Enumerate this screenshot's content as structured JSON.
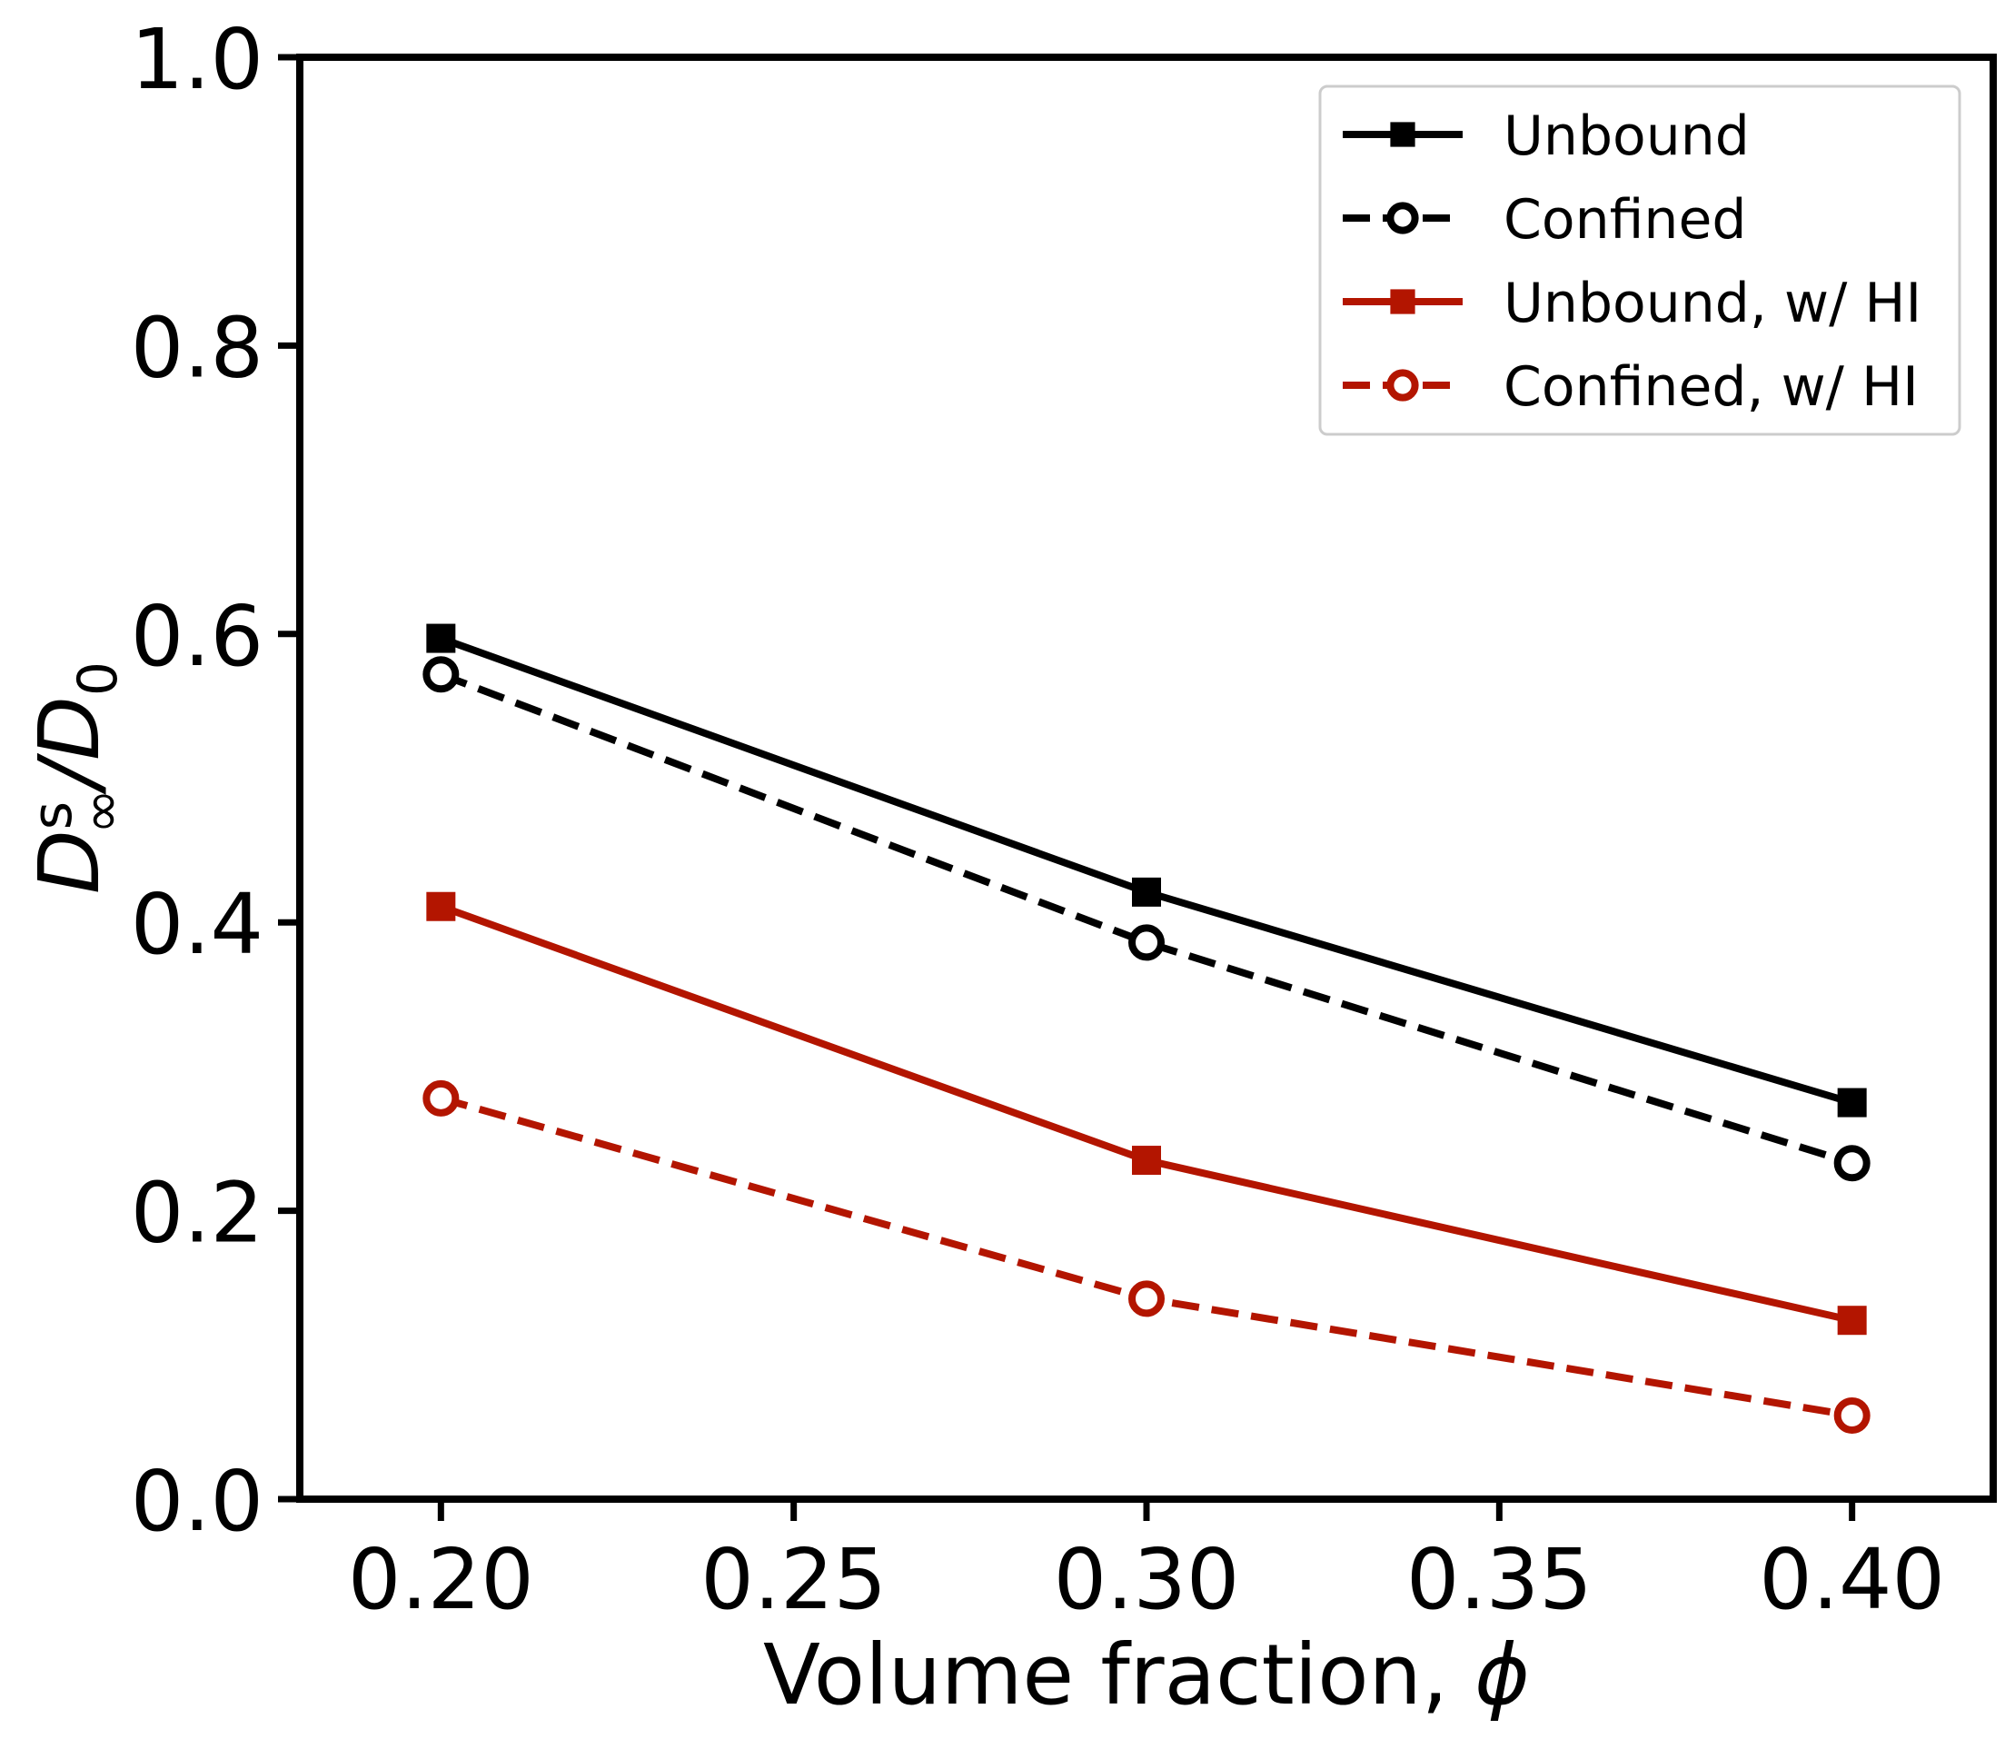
{
  "chart_data": {
    "type": "line",
    "xlabel": "Volume fraction, ",
    "xlabel_symbol": "ϕ",
    "ylabel": "D",
    "ylabel_sup": "s",
    "ylabel_sub": "∞",
    "ylabel_mid": "/D",
    "ylabel_sub2": "0",
    "xlim": [
      0.18,
      0.42
    ],
    "ylim": [
      0.0,
      1.0
    ],
    "xticks": [
      0.2,
      0.25,
      0.3,
      0.35,
      0.4
    ],
    "xtick_labels": [
      "0.20",
      "0.25",
      "0.30",
      "0.35",
      "0.40"
    ],
    "yticks": [
      0.0,
      0.2,
      0.4,
      0.6,
      0.8,
      1.0
    ],
    "ytick_labels": [
      "0.0",
      "0.2",
      "0.4",
      "0.6",
      "0.8",
      "1.0"
    ],
    "grid": false,
    "legend_position": "top-right",
    "x": [
      0.2,
      0.3,
      0.4
    ],
    "series": [
      {
        "name": "Unbound",
        "values": [
          0.597,
          0.421,
          0.275
        ],
        "color": "#000000",
        "dash": "solid",
        "marker": "square-filled"
      },
      {
        "name": "Confined",
        "values": [
          0.572,
          0.386,
          0.233
        ],
        "color": "#000000",
        "dash": "dashed",
        "marker": "circle-open"
      },
      {
        "name": "Unbound, w/ HI",
        "values": [
          0.411,
          0.235,
          0.124
        ],
        "color": "#b31500",
        "dash": "solid",
        "marker": "square-filled"
      },
      {
        "name": "Confined, w/ HI",
        "values": [
          0.278,
          0.139,
          0.058
        ],
        "color": "#b31500",
        "dash": "dashed",
        "marker": "circle-open"
      }
    ]
  }
}
